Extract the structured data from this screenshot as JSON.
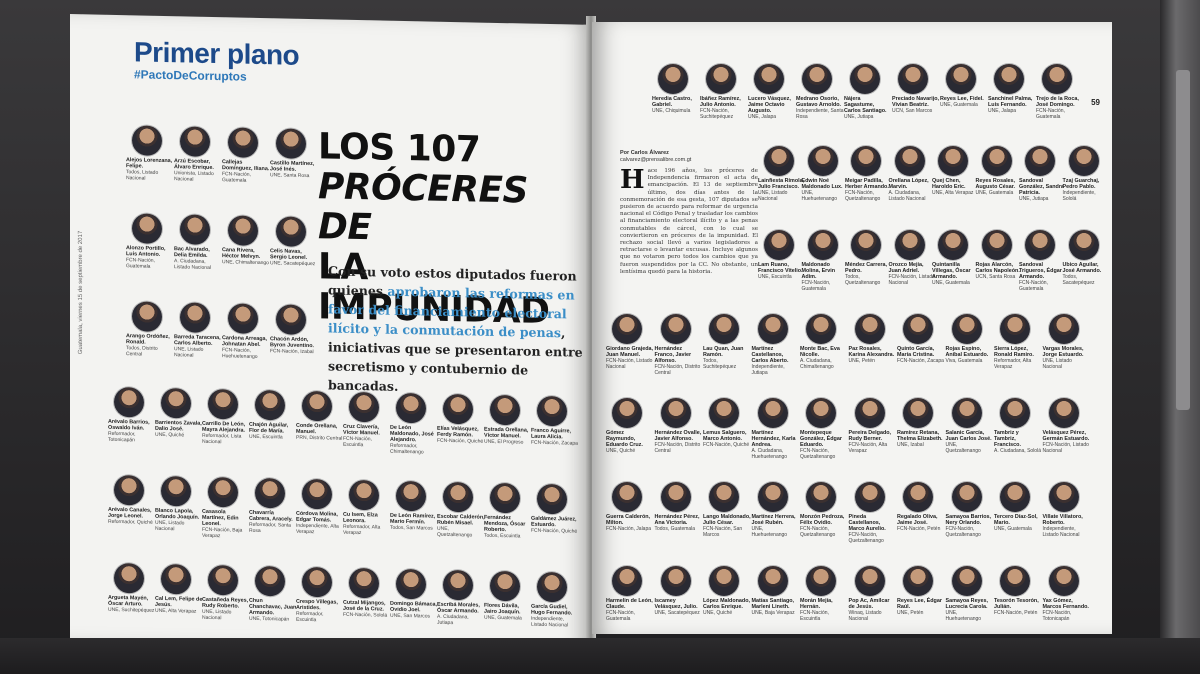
{
  "left_page": {
    "section": "Primer plano",
    "hashtag": "#PactoDeCorruptos",
    "side_meta": "Guatemala, viernes 15 de septiembre de 2017",
    "headline": {
      "line1": "LOS 107",
      "line2": "PRÓCERES DE",
      "line3": "LA IMPUNIDAD"
    },
    "deck": {
      "part1": "Con su voto estos diputados fueron quienes ",
      "highlight": "aprobaron las reformas en favor del financiamiento electoral ilícito y la conmutación de penas",
      "part2": ", iniciativas que se presentaron entre secretismo y contubernio de bancadas."
    },
    "deputies": [
      {
        "name": "Alejos Lorenzana, Felipe.",
        "party": "Todos, Listado Nacional"
      },
      {
        "name": "Arzú Escobar, Álvaro Enrique.",
        "party": "Unionista, Listado Nacional"
      },
      {
        "name": "Callejas Domínguez, Iliana.",
        "party": "FCN-Nación, Guatemala"
      },
      {
        "name": "Castillo Martínez, José Inés.",
        "party": "UNE, Santa Rosa"
      },
      {
        "name": "Alonzo Portillo, Luis Antonio.",
        "party": "FCN-Nación, Guatemala"
      },
      {
        "name": "Bac Alvarado, Delia Emilda.",
        "party": "A. Ciudadana, Listado Nacional"
      },
      {
        "name": "Cana Rivera, Héctor Melvyn.",
        "party": "UNE, Chimaltenango"
      },
      {
        "name": "Celis Navas, Sergio Leonel.",
        "party": "UNE, Sacatepéquez"
      },
      {
        "name": "Arango Ordóñez, Ronald.",
        "party": "Todos, Distrito Central"
      },
      {
        "name": "Barreda Taracena, Carlos Alberto.",
        "party": "UNE, Listado Nacional"
      },
      {
        "name": "Cardona Arreaga, Johnatan Abel.",
        "party": "FCN-Nación, Huehuetenango"
      },
      {
        "name": "Chacón Ardón, Byron Juventino.",
        "party": "FCN-Nación, Izabal"
      },
      {
        "name": "Arévalo Barrios, Oswaldo Iván.",
        "party": "Reformador, Totonicapán"
      },
      {
        "name": "Barrientos Zavala, Dalio José.",
        "party": "UNE, Quiché"
      },
      {
        "name": "Carrillo De León, Mayra Alejandra.",
        "party": "Reformador, Lista Nacional"
      },
      {
        "name": "Chajón Aguilar, Flor de María.",
        "party": "UNE, Escuintla"
      },
      {
        "name": "Conde Orellana, Manuel.",
        "party": "PRN, Distrito Central"
      },
      {
        "name": "Cruz Clavería, Víctor Manuel.",
        "party": "FCN-Nación, Escuintla"
      },
      {
        "name": "De León Maldonado, José Alejandro.",
        "party": "Reformador, Chimaltenango"
      },
      {
        "name": "Elías Velásquez, Ferdy Ramón.",
        "party": "FCN-Nación, Quiché"
      },
      {
        "name": "Estrada Orellana, Víctor Manuel.",
        "party": "UNE, El Progreso"
      },
      {
        "name": "Franco Aguirre, Laura Alicia.",
        "party": "FCN-Nación, Zacapa"
      },
      {
        "name": "Arévalo Canales, Jorge Leonel.",
        "party": "Reformador, Quiché"
      },
      {
        "name": "Blanco Lapola, Orlando Joaquín.",
        "party": "UNE, Listado Nacional"
      },
      {
        "name": "Casasola Martínez, Edin Leonel.",
        "party": "FCN-Nación, Baja Verapaz"
      },
      {
        "name": "Chavarría Cabrera, Aracely.",
        "party": "Reformador, Santa Rosa"
      },
      {
        "name": "Córdova Molina, Edgar Tomás.",
        "party": "Independiente, Alta Verapaz"
      },
      {
        "name": "Cu Isem, Elza Leonora.",
        "party": "Reformador, Alta Verapaz"
      },
      {
        "name": "De León Ramírez, Mario Fermín.",
        "party": "Todos, San Marcos"
      },
      {
        "name": "Escobar Calderón, Rubén Misael.",
        "party": "UNE, Quetzaltenango"
      },
      {
        "name": "Fernández Mendoza, Óscar Roberto.",
        "party": "Todos, Escuintla"
      },
      {
        "name": "Galdámez Juárez, Estuardo.",
        "party": "FCN-Nación, Quiché"
      },
      {
        "name": "Argueta Mayén, Óscar Arturo.",
        "party": "UNE, Suchitepéquez"
      },
      {
        "name": "Cal Lem, Felipe de Jesús.",
        "party": "UNE, Alta Verapaz"
      },
      {
        "name": "Castañeda Reyes, Rudy Roberto.",
        "party": "UNE, Listado Nacional"
      },
      {
        "name": "Chun Chanchavac, Juan Armando.",
        "party": "UNE, Totonicapán"
      },
      {
        "name": "Crespo Villegas, Aristides.",
        "party": "Reformador, Escuintla"
      },
      {
        "name": "Cutzal Mijangos, José de la Cruz.",
        "party": "FCN-Nación, Sololá"
      },
      {
        "name": "Domingo Bámaca, Ovidio Joel.",
        "party": "UNE, San Marcos"
      },
      {
        "name": "Escribá Morales, Óscar Armando.",
        "party": "A. Ciudadana, Jutiapa"
      },
      {
        "name": "Flores Dávila, Jairo Joaquín.",
        "party": "UNE, Guatemala"
      },
      {
        "name": "García Gudiel, Hugo Fernando.",
        "party": "Independiente, Listado Nacional"
      }
    ]
  },
  "right_page": {
    "page_number": "59",
    "side_meta": "Guatemala, viernes 15 de septiembre de 2017",
    "byline_label": "Por Carlos Álvarez",
    "byline_email": "calvarez@prensalibre.com.gt",
    "drop_cap": "H",
    "body": "ace 196 años, los próceres de Independencia firmaron el acta de emancipación. El 13 de septiembre último, dos días antes de la conmemoración de esa gesta, 107 diputados se pusieron de acuerdo para reformar de urgencia nacional el Código Penal y trasladar los cambios al financiamiento electoral ilícito y a las penas conmutables de cárcel, con lo cual se conviertieron en próceres de la impunidad. El rechazo social llevó a varios legisladores a retractarse o levantar excusas. Incluye algunos que no votaron pero todos los cambios que ya fueron suspendidos por la CC. No obstante, un lentísima quedó para la historia.",
    "deputies": [
      {
        "name": "Heredia Castro, Gabriel.",
        "party": "UNE, Chiquimula"
      },
      {
        "name": "Ibáñez Ramírez, Julio Antonio.",
        "party": "FCN-Nación, Suchitepéquez"
      },
      {
        "name": "Lucero Vásquez, Jaime Octavio Augusto.",
        "party": "UNE, Jalapa"
      },
      {
        "name": "Medrano Osorio, Gustavo Arnoldo.",
        "party": "Independiente, Santa Rosa"
      },
      {
        "name": "Nájera Sagastume, Carlos Santiago.",
        "party": "UNE, Jutiapa"
      },
      {
        "name": "Preciado Navarijo, Vivian Beatriz.",
        "party": "UCN, San Marcos"
      },
      {
        "name": "Reyes Lee, Fidel.",
        "party": "UNE, Guatemala"
      },
      {
        "name": "Sanchinel Palma, Luis Fernando.",
        "party": "UNE, Jalapa"
      },
      {
        "name": "Trejo de la Roca, José Domingo.",
        "party": "FCN-Nación, Guatemala"
      },
      {
        "name": "Lainfiesta Rímola, Julio Francisco.",
        "party": "UNE, Listado Nacional"
      },
      {
        "name": "Edwin Noé Maldonado Lux.",
        "party": "UNE, Huehuetenango"
      },
      {
        "name": "Meigar Padilla, Herber Armando.",
        "party": "FCN-Nación, Quetzaltenango"
      },
      {
        "name": "Orellana López, Marvin.",
        "party": "A. Ciudadana, Listado Nacional"
      },
      {
        "name": "Quej Chen, Haroldo Eric.",
        "party": "UNE, Alta Verapaz"
      },
      {
        "name": "Reyes Rosales, Augusto César.",
        "party": "UNE, Guatemala"
      },
      {
        "name": "Sandoval González, Sandra Patricia.",
        "party": "UNE, Jutiapa"
      },
      {
        "name": "Tzaj Guarchaj, Pedro Pablo.",
        "party": "Independiente, Sololá"
      },
      {
        "name": "Lam Ruano, Francisco Vitelio.",
        "party": "UNE, Escuintla"
      },
      {
        "name": "Maldonado Molina, Ervin Adim.",
        "party": "FCN-Nación, Guatemala"
      },
      {
        "name": "Méndez Carrera, Pedro.",
        "party": "Todos, Quetzaltenango"
      },
      {
        "name": "Orozco Mejía, Juan Adriel.",
        "party": "FCN-Nación, Listado Nacional"
      },
      {
        "name": "Quintanilla Villegas, Óscar Armando.",
        "party": "UNE, Guatemala"
      },
      {
        "name": "Rojas Alarcón, Carlos Napoleón.",
        "party": "UCN, Santa Rosa"
      },
      {
        "name": "Sandoval Trigueros, Édgar Armando.",
        "party": "FCN-Nación, Guatemala"
      },
      {
        "name": "Ubico Aguilar, José Armando.",
        "party": "Todos, Sacatepéquez"
      },
      {
        "name": "Giordano Grajeda, Juan Manuel.",
        "party": "FCN-Nación, Listado Nacional"
      },
      {
        "name": "Hernández Franco, Javier Alfonso.",
        "party": "FCN-Nación, Distrito Central"
      },
      {
        "name": "Lau Quan, Juan Ramón.",
        "party": "Todos, Suchitepéquez"
      },
      {
        "name": "Martínez Castellanos, Carlos Aberto.",
        "party": "Independiente, Jutiapa"
      },
      {
        "name": "Monte Bac, Eva Nicolle.",
        "party": "A. Ciudadana, Chimaltenango"
      },
      {
        "name": "Paz Rosales, Karina Alexandra.",
        "party": "UNE, Petén"
      },
      {
        "name": "Quinto García, María Cristina.",
        "party": "FCN-Nación, Zacapa"
      },
      {
        "name": "Rojas Espino, Aníbal Estuardo.",
        "party": "Viva, Guatemala"
      },
      {
        "name": "Sierra López, Ronald Ramiro.",
        "party": "Reformador, Alta Verapaz"
      },
      {
        "name": "Vargas Morales, Jorge Estuardo.",
        "party": "UNE, Listado Nacional"
      },
      {
        "name": "Gómez Raymundo, Eduardo Cruz.",
        "party": "UNE, Quiché"
      },
      {
        "name": "Hernández Ovalle, Javier Alfonso.",
        "party": "FCN-Nación, Distrito Central"
      },
      {
        "name": "Lemus Salguero, Marco Antonio.",
        "party": "FCN-Nación, Quiché"
      },
      {
        "name": "Martínez Hernández, Karla Andrea.",
        "party": "A. Ciudadana, Huehuetenango"
      },
      {
        "name": "Montepeque González, Édgar Eduardo.",
        "party": "FCN-Nación, Quetzaltenango"
      },
      {
        "name": "Pereira Delgado, Rudy Berner.",
        "party": "FCN-Nación, Alta Verapaz"
      },
      {
        "name": "Ramírez Retana, Thelma Elizabeth.",
        "party": "UNE, Izabal"
      },
      {
        "name": "Salanic García, Juan Carlos José.",
        "party": "UNE, Quetzaltenango"
      },
      {
        "name": "Tambriz y Tambriz, Francisco.",
        "party": "A. Ciudadana, Sololá"
      },
      {
        "name": "Velásquez Pérez, Germán Estuardo.",
        "party": "FCN-Nación, Listado Nacional"
      },
      {
        "name": "Guerra Calderón, Milton.",
        "party": "FCN-Nación, Jalapa"
      },
      {
        "name": "Hernández Pérez, Ana Victoria.",
        "party": "Todos, Guatemala"
      },
      {
        "name": "Lango Maldonado, Julio César.",
        "party": "FCN-Nación, San Marcos"
      },
      {
        "name": "Martínez Herrera, José Rubén.",
        "party": "UNE, Huehuetenango"
      },
      {
        "name": "Monzón Pedroza, Félix Ovidio.",
        "party": "FCN-Nación, Quetzaltenango"
      },
      {
        "name": "Pineda Castellanos, Marco Aurelio.",
        "party": "FCN-Nación, Quetzaltenango"
      },
      {
        "name": "Regalado Oliva, Jaime José.",
        "party": "FCN-Nación, Petén"
      },
      {
        "name": "Samayoa Barrios, Nery Orlando.",
        "party": "FCN-Nación, Quetzaltenango"
      },
      {
        "name": "Tercero Díaz-Sol, Mario.",
        "party": "UNE, Guatemala"
      },
      {
        "name": "Villate Villatoro, Roberto.",
        "party": "Independiente, Listado Nacional"
      },
      {
        "name": "Harmelin de León, Claude.",
        "party": "FCN-Nación, Guatemala"
      },
      {
        "name": "Iscamey Velásquez, Julio.",
        "party": "UNE, Sacatepéquez"
      },
      {
        "name": "López Maldonado, Carlos Enrique.",
        "party": "UNE, Quiché"
      },
      {
        "name": "Matías Santiago, Marleni Lineth.",
        "party": "UNE, Baja Verapaz"
      },
      {
        "name": "Morán Mejía, Hernán.",
        "party": "FCN-Nación, Escuintla"
      },
      {
        "name": "Pop Ac, Amílcar de Jesús.",
        "party": "Winaq, Listado Nacional"
      },
      {
        "name": "Reyes Lee, Édgar Raúl.",
        "party": "UNE, Petén"
      },
      {
        "name": "Samayoa Reyes, Lucrecia Carola.",
        "party": "UNE, Huehuetenango"
      },
      {
        "name": "Tesorón Tesorón, Julián.",
        "party": "FCN-Nación, Petén"
      },
      {
        "name": "Yax Gómez, Marcos Fernando.",
        "party": "FCN-Nación, Totonicapán"
      }
    ]
  }
}
